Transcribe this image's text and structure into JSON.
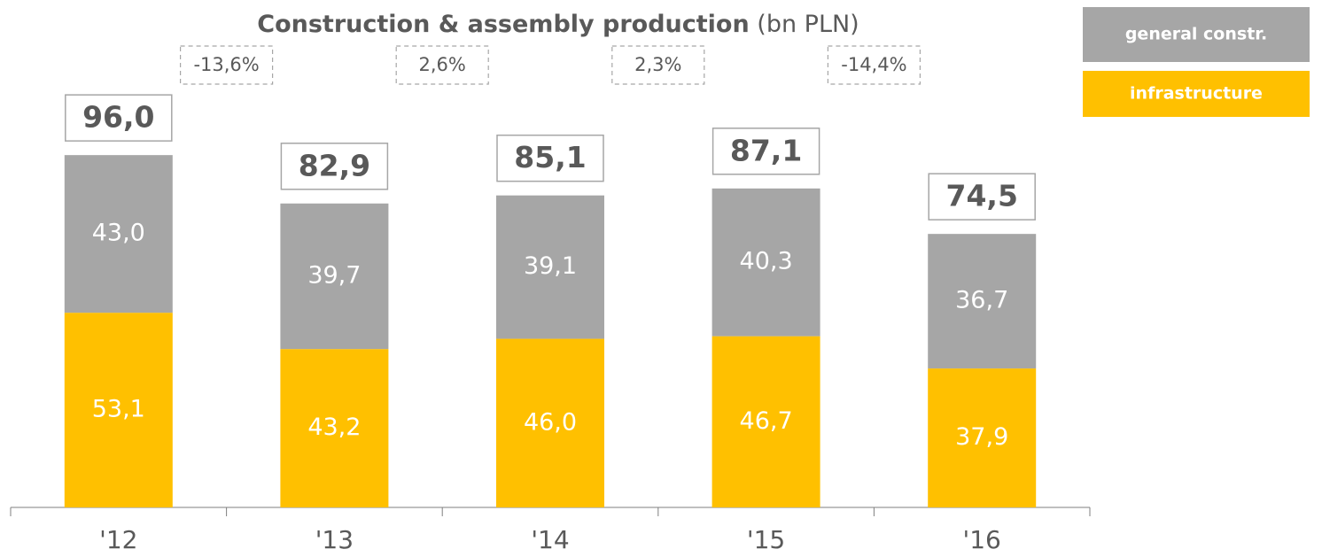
{
  "chart_data": {
    "type": "stacked_bar",
    "title": "Construction & assembly production",
    "unit": "(bn PLN)",
    "categories": [
      "'12",
      "'13",
      "'14",
      "'15",
      "'16"
    ],
    "series": [
      {
        "name": "infrastructure",
        "color": "#ffc000",
        "values": [
          53.1,
          43.2,
          46.0,
          46.7,
          37.9
        ],
        "value_labels": [
          "53,1",
          "43,2",
          "46,0",
          "46,7",
          "37,9"
        ]
      },
      {
        "name": "general constr.",
        "color": "#a6a6a6",
        "values": [
          43.0,
          39.7,
          39.1,
          40.3,
          36.7
        ],
        "value_labels": [
          "43,0",
          "39,7",
          "39,1",
          "40,3",
          "36,7"
        ]
      }
    ],
    "totals": [
      96.0,
      82.9,
      85.1,
      87.1,
      74.5
    ],
    "total_labels": [
      "96,0",
      "82,9",
      "85,1",
      "87,1",
      "74,5"
    ],
    "growth": [
      -13.6,
      2.6,
      2.3,
      -14.4
    ],
    "growth_labels": [
      "-13,6%",
      "2,6%",
      "2,3%",
      "-14,4%"
    ],
    "ylim": [
      0,
      100
    ],
    "legend": "top-right"
  }
}
